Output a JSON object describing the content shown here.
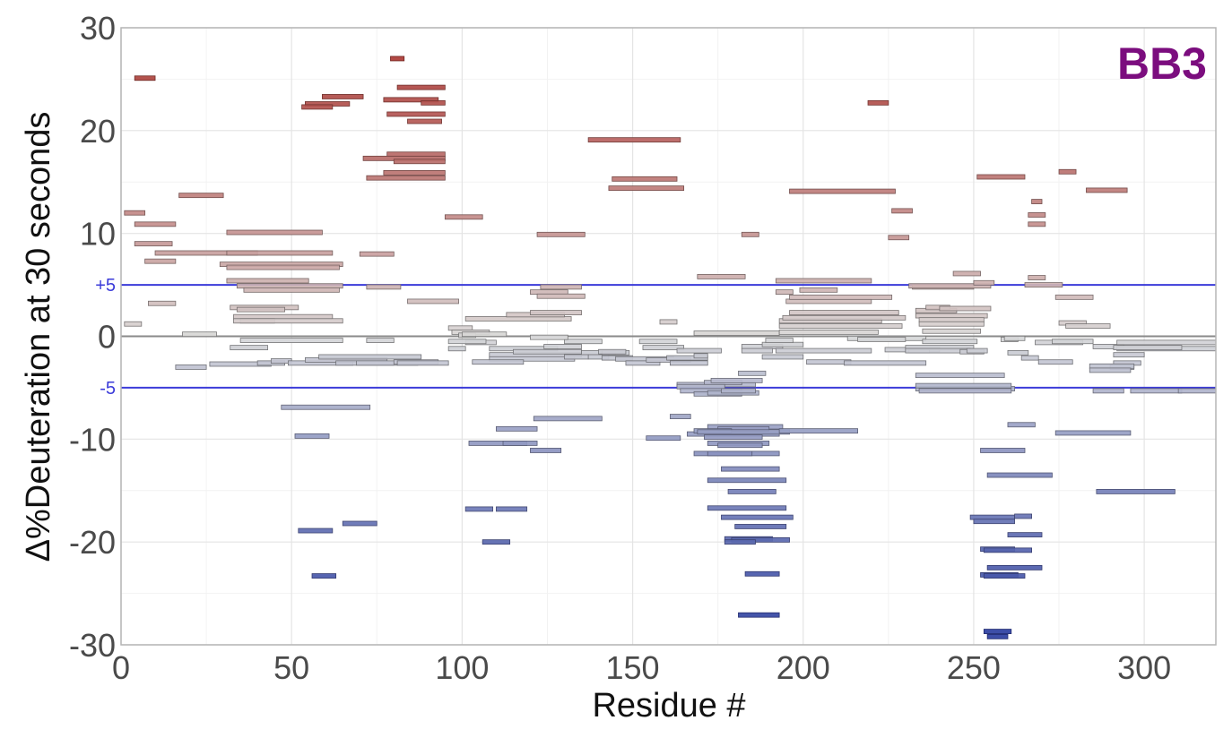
{
  "chart_data": {
    "type": "bar",
    "subtype": "woods-plot-horizontal-segments",
    "panel_label": "BB3",
    "panel_label_color": "#7b0d7e",
    "xlabel": "Residue #",
    "ylabel": "Δ%Deuteration at 30 seconds",
    "xlim": [
      0,
      321
    ],
    "ylim": [
      -30,
      30
    ],
    "x_ticks": [
      0,
      50,
      100,
      150,
      200,
      250,
      300
    ],
    "y_ticks": [
      {
        "value": 30,
        "label": "30"
      },
      {
        "value": 20,
        "label": "20"
      },
      {
        "value": 10,
        "label": "10"
      },
      {
        "value": 0,
        "label": "0"
      },
      {
        "value": -10,
        "label": "-10"
      },
      {
        "value": -20,
        "label": "-20"
      },
      {
        "value": -30,
        "label": "-30"
      }
    ],
    "grid": true,
    "zero_line_color": "#8a8a8a",
    "reference_lines": [
      {
        "value": 5,
        "label": "+5",
        "color": "#3b3bd9"
      },
      {
        "value": -5,
        "label": "-5",
        "color": "#3b3bd9"
      }
    ],
    "color_scale": {
      "positive": "#a8302b",
      "neutral": "#d9d9d9",
      "negative": "#2b3ea0"
    },
    "segments": [
      [
        4,
        10,
        25.1
      ],
      [
        54,
        67,
        22.6
      ],
      [
        53,
        62,
        22.3
      ],
      [
        59,
        71,
        23.3
      ],
      [
        79,
        83,
        27.0
      ],
      [
        81,
        95,
        24.2
      ],
      [
        77,
        93,
        23.0
      ],
      [
        88,
        95,
        22.7
      ],
      [
        78,
        95,
        21.6
      ],
      [
        84,
        94,
        20.9
      ],
      [
        78,
        95,
        17.7
      ],
      [
        71,
        95,
        17.3
      ],
      [
        80,
        95,
        17.0
      ],
      [
        77,
        95,
        15.9
      ],
      [
        72,
        95,
        15.4
      ],
      [
        137,
        164,
        19.1
      ],
      [
        144,
        163,
        15.3
      ],
      [
        143,
        165,
        14.4
      ],
      [
        219,
        225,
        22.7
      ],
      [
        1,
        7,
        12.0
      ],
      [
        4,
        16,
        10.9
      ],
      [
        17,
        30,
        13.7
      ],
      [
        4,
        15,
        9.0
      ],
      [
        7,
        16,
        7.3
      ],
      [
        10,
        40,
        8.1
      ],
      [
        31,
        62,
        8.1
      ],
      [
        31,
        59,
        10.1
      ],
      [
        70,
        80,
        8.0
      ],
      [
        95,
        106,
        11.6
      ],
      [
        122,
        136,
        9.9
      ],
      [
        182,
        187,
        9.9
      ],
      [
        196,
        227,
        14.1
      ],
      [
        226,
        232,
        12.2
      ],
      [
        225,
        231,
        9.6
      ],
      [
        251,
        265,
        15.5
      ],
      [
        267,
        270,
        13.1
      ],
      [
        266,
        271,
        11.8
      ],
      [
        266,
        271,
        10.9
      ],
      [
        275,
        280,
        16.0
      ],
      [
        283,
        295,
        14.2
      ],
      [
        29,
        65,
        7.0
      ],
      [
        31,
        64,
        6.7
      ],
      [
        31,
        55,
        5.4
      ],
      [
        34,
        65,
        4.9
      ],
      [
        36,
        64,
        4.5
      ],
      [
        72,
        82,
        4.8
      ],
      [
        84,
        99,
        3.4
      ],
      [
        8,
        16,
        3.2
      ],
      [
        1,
        6,
        1.2
      ],
      [
        32,
        52,
        2.8
      ],
      [
        34,
        48,
        2.6
      ],
      [
        33,
        62,
        1.9
      ],
      [
        35,
        45,
        1.5
      ],
      [
        33,
        65,
        1.5
      ],
      [
        18,
        28,
        0.2
      ],
      [
        32,
        43,
        -1.1
      ],
      [
        35,
        65,
        -0.4
      ],
      [
        72,
        80,
        -0.4
      ],
      [
        16,
        25,
        -3.0
      ],
      [
        26,
        44,
        -2.7
      ],
      [
        40,
        48,
        -2.6
      ],
      [
        44,
        50,
        -2.4
      ],
      [
        49,
        68,
        -2.6
      ],
      [
        54,
        78,
        -2.3
      ],
      [
        58,
        88,
        -2.0
      ],
      [
        63,
        80,
        -2.6
      ],
      [
        69,
        87,
        -2.6
      ],
      [
        80,
        93,
        -2.5
      ],
      [
        81,
        96,
        -2.6
      ],
      [
        96,
        103,
        0.8
      ],
      [
        97,
        108,
        0.4
      ],
      [
        99,
        104,
        0.1
      ],
      [
        100,
        113,
        0.2
      ],
      [
        101,
        110,
        -0.6
      ],
      [
        108,
        128,
        -1.2
      ],
      [
        108,
        135,
        -1.8
      ],
      [
        108,
        133,
        -2.2
      ],
      [
        115,
        135,
        -1.5
      ],
      [
        124,
        135,
        -1.0
      ],
      [
        130,
        141,
        -0.5
      ],
      [
        135,
        145,
        -1.6
      ],
      [
        137,
        143,
        -2.0
      ],
      [
        141,
        149,
        -1.6
      ],
      [
        141,
        150,
        -2.1
      ],
      [
        145,
        162,
        -2.2
      ],
      [
        148,
        158,
        -2.6
      ],
      [
        152,
        163,
        -0.5
      ],
      [
        153,
        165,
        -1.1
      ],
      [
        154,
        167,
        -2.3
      ],
      [
        161,
        172,
        -2.6
      ],
      [
        163,
        176,
        -1.4
      ],
      [
        160,
        172,
        -2.1
      ],
      [
        101,
        132,
        1.7
      ],
      [
        113,
        130,
        2.1
      ],
      [
        120,
        135,
        2.3
      ],
      [
        123,
        135,
        4.8
      ],
      [
        120,
        131,
        4.3
      ],
      [
        122,
        136,
        3.9
      ],
      [
        130,
        137,
        -2.0
      ],
      [
        103,
        118,
        -2.5
      ],
      [
        96,
        101,
        -1.2
      ],
      [
        96,
        107,
        -0.5
      ],
      [
        120,
        131,
        -0.1
      ],
      [
        140,
        148,
        -1.5
      ],
      [
        158,
        163,
        1.4
      ],
      [
        168,
        172,
        -1.9
      ],
      [
        168,
        193,
        0.3
      ],
      [
        182,
        194,
        -1.0
      ],
      [
        182,
        191,
        -1.4
      ],
      [
        188,
        200,
        -0.8
      ],
      [
        189,
        197,
        -0.4
      ],
      [
        192,
        220,
        -1.4
      ],
      [
        193,
        222,
        0.4
      ],
      [
        193,
        229,
        1.0
      ],
      [
        193,
        223,
        1.5
      ],
      [
        196,
        228,
        2.3
      ],
      [
        194,
        230,
        1.8
      ],
      [
        195,
        220,
        3.4
      ],
      [
        196,
        226,
        3.8
      ],
      [
        199,
        210,
        4.5
      ],
      [
        192,
        197,
        4.3
      ],
      [
        192,
        220,
        5.4
      ],
      [
        188,
        200,
        -2.0
      ],
      [
        201,
        214,
        -2.5
      ],
      [
        212,
        236,
        -2.6
      ],
      [
        213,
        236,
        -0.2
      ],
      [
        216,
        230,
        -0.3
      ],
      [
        224,
        240,
        -1.3
      ],
      [
        231,
        237,
        -1.4
      ],
      [
        169,
        183,
        5.8
      ],
      [
        230,
        250,
        -1.1
      ],
      [
        230,
        249,
        -1.4
      ],
      [
        233,
        254,
        2.0
      ],
      [
        233,
        245,
        2.5
      ],
      [
        234,
        253,
        1.6
      ],
      [
        234,
        253,
        1.2
      ],
      [
        235,
        252,
        0.5
      ],
      [
        235,
        251,
        -0.5
      ],
      [
        236,
        243,
        2.8
      ],
      [
        240,
        255,
        2.7
      ],
      [
        246,
        253,
        -1.5
      ],
      [
        248,
        254,
        -1.4
      ],
      [
        258,
        263,
        -0.3
      ],
      [
        259,
        265,
        -0.2
      ],
      [
        260,
        266,
        -1.6
      ],
      [
        264,
        269,
        -2.1
      ],
      [
        269,
        279,
        -2.5
      ],
      [
        268,
        282,
        -0.6
      ],
      [
        275,
        283,
        1.3
      ],
      [
        273,
        285,
        -0.5
      ],
      [
        277,
        290,
        1.0
      ],
      [
        285,
        294,
        -1.0
      ],
      [
        291,
        299,
        -2.6
      ],
      [
        292,
        321,
        -1.2
      ],
      [
        292,
        321,
        -0.6
      ],
      [
        291,
        311,
        -1.1
      ],
      [
        291,
        300,
        -1.8
      ],
      [
        232,
        250,
        4.8
      ],
      [
        231,
        255,
        4.9
      ],
      [
        244,
        252,
        6.1
      ],
      [
        250,
        256,
        5.2
      ],
      [
        266,
        271,
        5.7
      ],
      [
        265,
        276,
        5.0
      ],
      [
        274,
        285,
        3.8
      ],
      [
        290,
        297,
        -3.0
      ],
      [
        284,
        297,
        -2.9
      ],
      [
        284,
        296,
        -3.3
      ],
      [
        163,
        186,
        -4.7
      ],
      [
        171,
        182,
        -4.5
      ],
      [
        163,
        177,
        -4.9
      ],
      [
        164,
        182,
        -5.3
      ],
      [
        168,
        182,
        -5.6
      ],
      [
        172,
        187,
        -5.5
      ],
      [
        176,
        186,
        -5.3
      ],
      [
        181,
        189,
        -3.6
      ],
      [
        173,
        188,
        -4.3
      ],
      [
        233,
        259,
        -3.8
      ],
      [
        233,
        262,
        -5.1
      ],
      [
        233,
        261,
        -4.8
      ],
      [
        234,
        261,
        -5.3
      ],
      [
        285,
        294,
        -5.3
      ],
      [
        296,
        311,
        -5.3
      ],
      [
        310,
        321,
        -5.3
      ],
      [
        47,
        73,
        -6.9
      ],
      [
        161,
        167,
        -7.8
      ],
      [
        121,
        141,
        -8.0
      ],
      [
        172,
        194,
        -8.8
      ],
      [
        166,
        193,
        -9.5
      ],
      [
        175,
        190,
        -9.0
      ],
      [
        168,
        179,
        -9.2
      ],
      [
        171,
        188,
        -9.8
      ],
      [
        172,
        190,
        -10.4
      ],
      [
        175,
        188,
        -10.6
      ],
      [
        169,
        196,
        -9.3
      ],
      [
        110,
        122,
        -9.0
      ],
      [
        51,
        61,
        -9.7
      ],
      [
        102,
        119,
        -10.4
      ],
      [
        112,
        122,
        -10.4
      ],
      [
        120,
        129,
        -11.1
      ],
      [
        154,
        164,
        -9.9
      ],
      [
        168,
        193,
        -11.4
      ],
      [
        172,
        185,
        -11.4
      ],
      [
        176,
        193,
        -12.9
      ],
      [
        172,
        195,
        -14.0
      ],
      [
        178,
        192,
        -15.1
      ],
      [
        172,
        195,
        -16.7
      ],
      [
        176,
        197,
        -17.6
      ],
      [
        180,
        195,
        -18.5
      ],
      [
        177,
        191,
        -19.7
      ],
      [
        179,
        196,
        -19.8
      ],
      [
        177,
        186,
        -20.0
      ],
      [
        52,
        62,
        -18.9
      ],
      [
        65,
        75,
        -18.2
      ],
      [
        101,
        109,
        -16.8
      ],
      [
        110,
        119,
        -16.8
      ],
      [
        106,
        114,
        -20.0
      ],
      [
        56,
        63,
        -23.3
      ],
      [
        183,
        193,
        -23.1
      ],
      [
        181,
        193,
        -27.1
      ],
      [
        193,
        216,
        -9.2
      ],
      [
        252,
        265,
        -11.1
      ],
      [
        254,
        273,
        -13.5
      ],
      [
        260,
        268,
        -8.6
      ],
      [
        274,
        296,
        -9.4
      ],
      [
        286,
        309,
        -15.1
      ],
      [
        249,
        262,
        -17.6
      ],
      [
        250,
        262,
        -18.0
      ],
      [
        262,
        267,
        -17.5
      ],
      [
        260,
        270,
        -19.3
      ],
      [
        252,
        262,
        -20.7
      ],
      [
        253,
        267,
        -20.8
      ],
      [
        254,
        270,
        -22.5
      ],
      [
        252,
        263,
        -23.2
      ],
      [
        253,
        265,
        -23.3
      ],
      [
        253,
        261,
        -28.7
      ],
      [
        254,
        260,
        -29.2
      ]
    ]
  }
}
